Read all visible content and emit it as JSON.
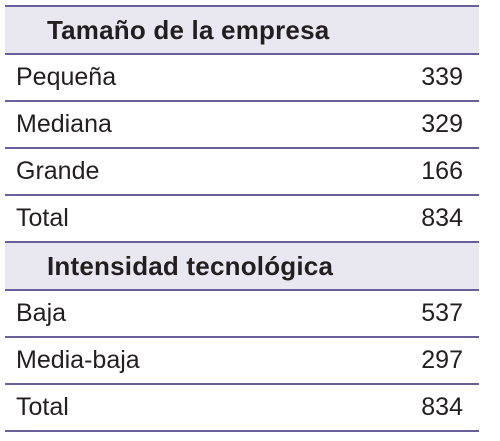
{
  "sections": [
    {
      "title": "Tamaño de la empresa",
      "rows": [
        {
          "label": "Pequeña",
          "value": "339"
        },
        {
          "label": "Mediana",
          "value": "329"
        },
        {
          "label": "Grande",
          "value": "166"
        },
        {
          "label": "Total",
          "value": "834"
        }
      ]
    },
    {
      "title": "Intensidad tecnológica",
      "rows": [
        {
          "label": "Baja",
          "value": "537"
        },
        {
          "label": "Media-baja",
          "value": "297"
        },
        {
          "label": "Total",
          "value": "834"
        }
      ]
    }
  ],
  "colors": {
    "header_bg": "#e9e8f1",
    "rule": "#6a6099",
    "text": "#231f20"
  }
}
